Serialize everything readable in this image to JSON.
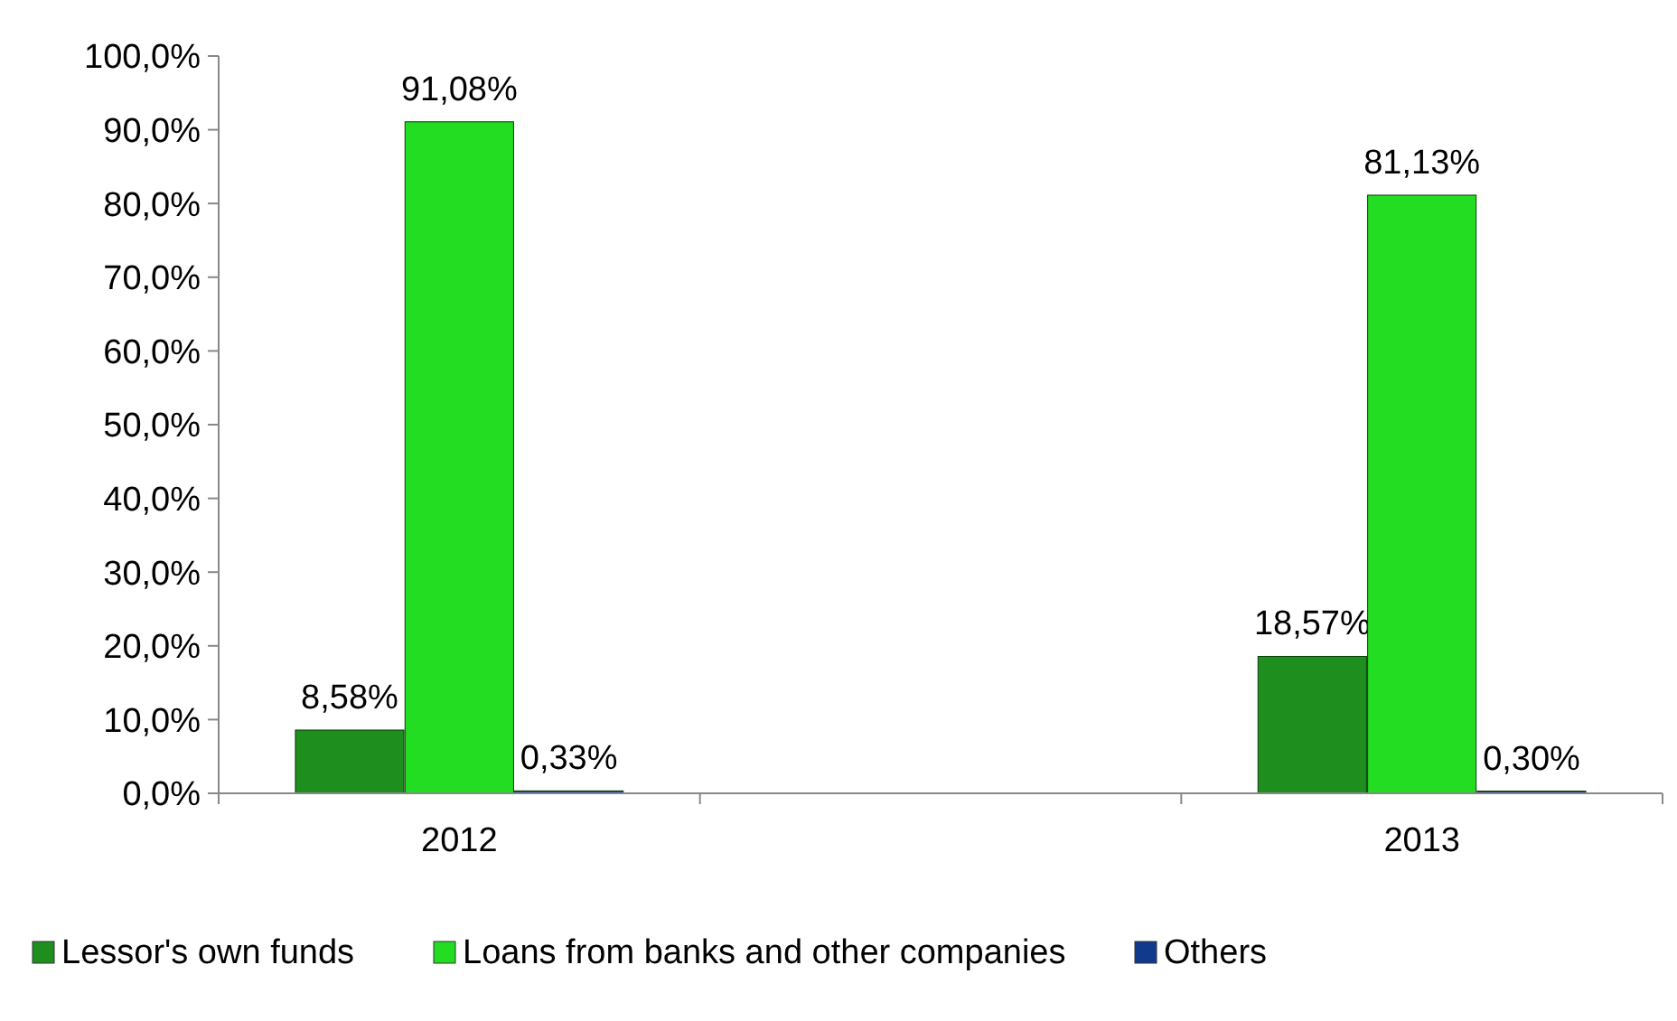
{
  "chart_data": {
    "type": "bar",
    "categories": [
      "2012",
      null,
      "2013"
    ],
    "series": [
      {
        "name": "Lessor's own funds",
        "color": "#1e8f1e",
        "values": [
          8.58,
          null,
          18.57
        ],
        "value_labels": [
          "8,58%",
          null,
          "18,57%"
        ]
      },
      {
        "name": "Loans from banks and other companies",
        "color": "#22dd22",
        "values": [
          91.08,
          null,
          81.13
        ],
        "value_labels": [
          "91,08%",
          null,
          "81,13%"
        ]
      },
      {
        "name": "Others",
        "color": "#123a8c",
        "values": [
          0.33,
          null,
          0.3
        ],
        "value_labels": [
          "0,33%",
          null,
          "0,30%"
        ]
      }
    ],
    "ylim": [
      0,
      100
    ],
    "yticks": [
      {
        "value": 0,
        "label": "0,0%"
      },
      {
        "value": 10,
        "label": "10,0%"
      },
      {
        "value": 20,
        "label": "20,0%"
      },
      {
        "value": 30,
        "label": "30,0%"
      },
      {
        "value": 40,
        "label": "40,0%"
      },
      {
        "value": 50,
        "label": "50,0%"
      },
      {
        "value": 60,
        "label": "60,0%"
      },
      {
        "value": 70,
        "label": "70,0%"
      },
      {
        "value": 80,
        "label": "80,0%"
      },
      {
        "value": 90,
        "label": "90,0%"
      },
      {
        "value": 100,
        "label": "100,0%"
      }
    ],
    "legend": "bottom"
  }
}
